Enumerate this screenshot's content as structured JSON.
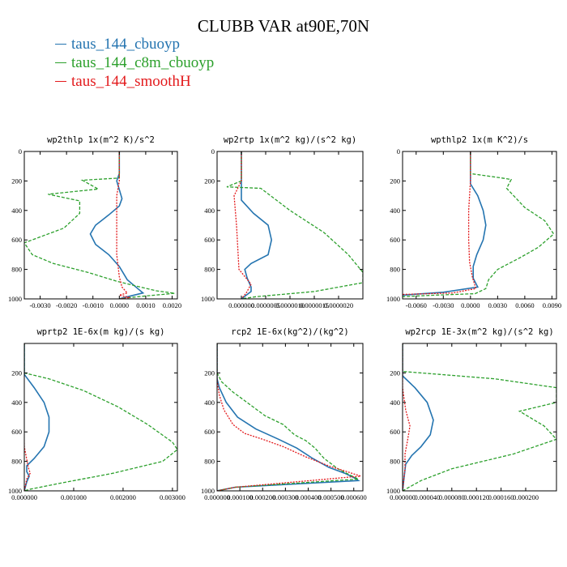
{
  "figure": {
    "title": "CLUBB VAR at90E,70N",
    "legend": [
      {
        "label": "taus_144_cbuoyp",
        "color": "#2474b0"
      },
      {
        "label": "taus_144_c8m_cbuoyp",
        "color": "#2ca02c"
      },
      {
        "label": "taus_144_smoothH",
        "color": "#e31a1c"
      }
    ]
  },
  "chart_data": [
    {
      "type": "line",
      "title": "wp2thlp  1x(m^2 K)/s^2",
      "xlim": [
        -0.0036,
        0.0022
      ],
      "ylim": [
        1000,
        0
      ],
      "xticks": [
        -0.003,
        -0.002,
        -0.001,
        0.0,
        0.001,
        0.002
      ],
      "xtick_labels": [
        "-0.0030",
        "-0.0020",
        "-0.0010",
        "0.0000",
        "0.0010",
        "0.0020"
      ],
      "yticks": [
        0,
        200,
        400,
        600,
        800,
        1000
      ],
      "ytick_labels": [
        "0",
        "200",
        "400",
        "600",
        "800",
        "1000"
      ],
      "series": [
        {
          "name": "taus_144_cbuoyp",
          "x": [
            0.0,
            0.0,
            -0.0001,
            0.0001,
            0.0,
            -0.0004,
            -0.0009,
            -0.0011,
            -0.0009,
            -0.0004,
            0.0,
            0.0003,
            0.0007,
            0.0009,
            0.0002,
            0.0
          ],
          "y": [
            0,
            150,
            200,
            320,
            370,
            430,
            500,
            560,
            630,
            700,
            780,
            870,
            930,
            960,
            990,
            1000
          ]
        },
        {
          "name": "taus_144_c8m_cbuoyp",
          "x": [
            0.0,
            0.0,
            -0.0014,
            -0.0008,
            -0.0027,
            -0.0015,
            -0.0015,
            -0.0021,
            -0.0036,
            -0.0033,
            -0.0025,
            -0.0012,
            -0.0001,
            0.0008,
            0.0014,
            0.0021,
            0.0007,
            0.0
          ],
          "y": [
            0,
            180,
            195,
            255,
            290,
            335,
            420,
            520,
            620,
            700,
            760,
            820,
            880,
            920,
            945,
            962,
            985,
            1000
          ]
        },
        {
          "name": "taus_144_smoothH",
          "x": [
            0.0,
            0.0,
            -0.0001,
            -0.0001,
            -0.0001,
            0.0,
            0.0001,
            0.0003,
            0.0,
            0.0004,
            0.0
          ],
          "y": [
            0,
            200,
            300,
            500,
            700,
            850,
            920,
            960,
            975,
            990,
            1000
          ]
        }
      ]
    },
    {
      "type": "line",
      "title": "wp2rtp  1x(m^2 kg)/(s^2 kg)",
      "xlim": [
        -5e-07,
        2.5e-06
      ],
      "ylim": [
        1000,
        0
      ],
      "xticks": [
        0.0,
        5e-07,
        1e-06,
        1.5e-06,
        2e-06
      ],
      "xtick_labels": [
        "0.000000",
        "0.0000005",
        "0.0000010",
        "0.0000015",
        "0.0000020"
      ],
      "yticks": [
        0,
        200,
        400,
        600,
        800,
        1000
      ],
      "ytick_labels": [
        "0",
        "200",
        "400",
        "600",
        "800",
        "1000"
      ],
      "series": [
        {
          "name": "taus_144_cbuoyp",
          "x": [
            0.0,
            0.0,
            0.0,
            2.5e-07,
            5.5e-07,
            6.2e-07,
            5.5e-07,
            2e-07,
            7e-08,
            1.2e-07,
            2e-07,
            2e-07,
            0.0
          ],
          "y": [
            0,
            200,
            330,
            420,
            500,
            600,
            700,
            760,
            800,
            860,
            920,
            950,
            1000
          ]
        },
        {
          "name": "taus_144_c8m_cbuoyp",
          "x": [
            0.0,
            0.0,
            -3e-07,
            4e-07,
            1e-06,
            1.7e-06,
            2.2e-06,
            2.5e-06,
            2.5e-06,
            1.5e-06,
            3e-07,
            0.0
          ],
          "y": [
            0,
            200,
            240,
            250,
            400,
            550,
            700,
            820,
            890,
            950,
            985,
            1000
          ]
        },
        {
          "name": "taus_144_smoothH",
          "x": [
            0.0,
            0.0,
            -1.5e-07,
            -1e-07,
            -5e-08,
            2e-07,
            1e-07,
            0.0
          ],
          "y": [
            0,
            200,
            300,
            500,
            800,
            900,
            960,
            1000
          ]
        }
      ]
    },
    {
      "type": "line",
      "title": "wpthlp2  1x(m K^2)/s",
      "xlim": [
        -0.0075,
        0.0095
      ],
      "ylim": [
        1000,
        0
      ],
      "xticks": [
        -0.006,
        -0.003,
        0.0,
        0.003,
        0.006,
        0.009
      ],
      "xtick_labels": [
        "-0.0060",
        "-0.0030",
        "0.0000",
        "0.0030",
        "0.0060",
        "0.0090"
      ],
      "yticks": [
        0,
        200,
        400,
        600,
        800,
        1000
      ],
      "ytick_labels": [
        "0",
        "200",
        "400",
        "600",
        "800",
        "1000"
      ],
      "series": [
        {
          "name": "taus_144_cbuoyp",
          "x": [
            0.0,
            0.0,
            0.0008,
            0.0014,
            0.0017,
            0.0014,
            0.0007,
            0.0003,
            0.0003,
            0.0008,
            -0.003,
            -0.0075
          ],
          "y": [
            0,
            220,
            300,
            400,
            500,
            600,
            700,
            780,
            860,
            920,
            955,
            975
          ]
        },
        {
          "name": "taus_144_c8m_cbuoyp",
          "x": [
            0.0,
            0.0,
            0.0035,
            0.0045,
            0.004,
            0.006,
            0.0082,
            0.0092,
            0.0075,
            0.0055,
            0.003,
            0.002,
            0.0017,
            0.0005,
            -0.004,
            -0.0075
          ],
          "y": [
            0,
            150,
            180,
            190,
            250,
            380,
            470,
            560,
            650,
            720,
            800,
            870,
            930,
            965,
            975,
            985
          ]
        },
        {
          "name": "taus_144_smoothH",
          "x": [
            0.0,
            0.0,
            -0.0002,
            -0.0002,
            -0.0001,
            0.0002,
            0.0006,
            -0.002,
            -0.0075
          ],
          "y": [
            0,
            200,
            400,
            600,
            750,
            850,
            930,
            960,
            970
          ]
        }
      ]
    },
    {
      "type": "line",
      "title": "wprtp2  1E-6x(m kg)/(s kg)",
      "xlim": [
        0.0,
        0.0031
      ],
      "ylim": [
        1000,
        0
      ],
      "xticks": [
        0.0,
        0.001,
        0.002,
        0.003
      ],
      "xtick_labels": [
        "0.000000",
        "0.001000",
        "0.002000",
        "0.003000"
      ],
      "yticks": [
        200,
        400,
        600,
        800,
        1000
      ],
      "ytick_labels": [
        "200",
        "400",
        "600",
        "800",
        "1000"
      ],
      "series": [
        {
          "name": "taus_144_cbuoyp",
          "x": [
            0.0,
            0.0,
            0.0002,
            0.0004,
            0.0005,
            0.0005,
            0.0004,
            0.0002,
            5e-05,
            5e-05,
            0.0001,
            5e-05,
            0.0
          ],
          "y": [
            0,
            210,
            300,
            400,
            500,
            600,
            700,
            780,
            830,
            870,
            900,
            940,
            1000
          ]
        },
        {
          "name": "taus_144_c8m_cbuoyp",
          "x": [
            0.0,
            0.0,
            0.0005,
            0.0012,
            0.0019,
            0.0025,
            0.003,
            0.0031,
            0.0028,
            0.0018,
            0.0007,
            0.0001,
            0.0
          ],
          "y": [
            0,
            200,
            240,
            320,
            430,
            550,
            670,
            720,
            800,
            880,
            950,
            990,
            1000
          ]
        },
        {
          "name": "taus_144_smoothH",
          "x": [
            0.0,
            -2e-05,
            -1e-05,
            0.0,
            8e-05,
            0.00012,
            5e-05,
            0.0
          ],
          "y": [
            0,
            300,
            500,
            700,
            840,
            880,
            920,
            1000
          ]
        }
      ]
    },
    {
      "type": "line",
      "title": "rcp2  1E-6x(kg^2)/(kg^2)",
      "xlim": [
        0.0,
        0.00064
      ],
      "ylim": [
        1000,
        0
      ],
      "xticks": [
        0.0,
        0.0001,
        0.0002,
        0.0003,
        0.0004,
        0.0005,
        0.0006
      ],
      "xtick_labels": [
        "0.000000",
        "0.000100",
        "0.000200",
        "0.000300",
        "0.000400",
        "0.000500",
        "0.000600"
      ],
      "yticks": [
        200,
        400,
        600,
        800,
        1000
      ],
      "ytick_labels": [
        "200",
        "400",
        "600",
        "800",
        "1000"
      ],
      "series": [
        {
          "name": "taus_144_cbuoyp",
          "x": [
            0.0,
            0.0,
            1e-05,
            4e-05,
            9e-05,
            0.00017,
            0.00027,
            0.00035,
            0.00042,
            0.00049,
            0.00056,
            0.0006,
            0.00062,
            8e-05,
            0.0
          ],
          "y": [
            0,
            240,
            300,
            400,
            500,
            580,
            650,
            710,
            780,
            840,
            880,
            910,
            930,
            975,
            1000
          ]
        },
        {
          "name": "taus_144_c8m_cbuoyp",
          "x": [
            0.0,
            0.0,
            2e-05,
            7e-05,
            0.00014,
            0.00021,
            0.00029,
            0.00034,
            0.00039,
            0.00043,
            0.00047,
            0.00053,
            0.00058,
            0.00062,
            8e-05,
            0.0
          ],
          "y": [
            0,
            200,
            260,
            330,
            410,
            490,
            550,
            620,
            660,
            710,
            780,
            850,
            890,
            920,
            975,
            1000
          ]
        },
        {
          "name": "taus_144_smoothH",
          "x": [
            0.0,
            0.0,
            1e-05,
            3e-05,
            7e-05,
            0.00012,
            0.0002,
            0.00029,
            0.00039,
            0.00049,
            0.00057,
            0.00063,
            8e-05,
            0.0
          ],
          "y": [
            0,
            250,
            350,
            450,
            550,
            610,
            650,
            700,
            770,
            830,
            870,
            900,
            975,
            1000
          ]
        }
      ]
    },
    {
      "type": "line",
      "title": "wp2rcp  1E-3x(m^2 kg)/(s^2 kg)",
      "xlim": [
        0.0,
        0.00025
      ],
      "ylim": [
        1000,
        0
      ],
      "xticks": [
        0.0,
        4e-05,
        8e-05,
        0.00012,
        0.00016,
        0.0002
      ],
      "xtick_labels": [
        "0.000000",
        "0.000040",
        "0.000080",
        "0.000120",
        "0.000160",
        "0.000200"
      ],
      "yticks": [
        200,
        400,
        600,
        800,
        1000
      ],
      "ytick_labels": [
        "200",
        "400",
        "600",
        "800",
        "1000"
      ],
      "series": [
        {
          "name": "taus_144_cbuoyp",
          "x": [
            0.0,
            0.0,
            2e-05,
            4e-05,
            5e-05,
            4.5e-05,
            3e-05,
            1.5e-05,
            5e-06,
            0.0
          ],
          "y": [
            0,
            220,
            300,
            400,
            520,
            620,
            700,
            760,
            820,
            1000
          ]
        },
        {
          "name": "taus_144_c8m_cbuoyp",
          "x": [
            0.0,
            0.0,
            6e-05,
            0.00015,
            0.00025,
            0.00025,
            0.00019,
            0.00023,
            0.00025,
            0.00018,
            8e-05,
            3e-05,
            0.0
          ],
          "y": [
            0,
            190,
            210,
            240,
            300,
            400,
            460,
            560,
            650,
            750,
            850,
            930,
            1000
          ]
        },
        {
          "name": "taus_144_smoothH",
          "x": [
            0.0,
            0.0,
            5e-06,
            1.2e-05,
            8e-06,
            4e-06,
            4e-06,
            0.0
          ],
          "y": [
            0,
            300,
            450,
            560,
            660,
            750,
            850,
            1000
          ]
        }
      ]
    }
  ]
}
